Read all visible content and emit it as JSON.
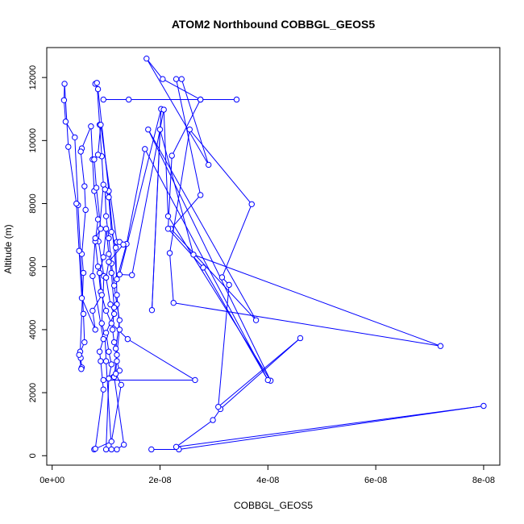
{
  "chart_data": {
    "type": "scatter",
    "title": "ATOM2 Northbound COBBGL_GEOS5",
    "xlabel": "COBBGL_GEOS5",
    "ylabel": "Altitude (m)",
    "xlim": [
      -1e-09,
      8.3e-08
    ],
    "ylim": [
      -300,
      12950
    ],
    "x_ticks": [
      {
        "value": 0,
        "label": "0e+00"
      },
      {
        "value": 2e-08,
        "label": "2e-08"
      },
      {
        "value": 4e-08,
        "label": "4e-08"
      },
      {
        "value": 6e-08,
        "label": "6e-08"
      },
      {
        "value": 8e-08,
        "label": "8e-08"
      }
    ],
    "y_ticks": [
      {
        "value": 0,
        "label": "0"
      },
      {
        "value": 2000,
        "label": "2000"
      },
      {
        "value": 4000,
        "label": "4000"
      },
      {
        "value": 6000,
        "label": "6000"
      },
      {
        "value": 8000,
        "label": "8000"
      },
      {
        "value": 10000,
        "label": "10000"
      },
      {
        "value": 12000,
        "label": "12000"
      }
    ],
    "grid": false,
    "legend": "none",
    "color": "#0000ff",
    "style": "points-connected-by-lines",
    "series": [
      {
        "values": [
          {
            "x": 1.84e-08,
            "y": 200
          },
          {
            "x": 2.35e-08,
            "y": 200
          },
          {
            "x": 8e-08,
            "y": 1580
          },
          {
            "x": 2.3e-08,
            "y": 280
          },
          {
            "x": 2.98e-08,
            "y": 1130
          },
          {
            "x": 3.12e-08,
            "y": 1480
          },
          {
            "x": 4.6e-08,
            "y": 3730
          },
          {
            "x": 3.08e-08,
            "y": 1550
          },
          {
            "x": 3.28e-08,
            "y": 5420
          },
          {
            "x": 3.15e-08,
            "y": 5660
          },
          {
            "x": 3.7e-08,
            "y": 7980
          },
          {
            "x": 2.55e-08,
            "y": 10350
          },
          {
            "x": 2.18e-08,
            "y": 6430
          },
          {
            "x": 2.25e-08,
            "y": 4850
          },
          {
            "x": 7.2e-08,
            "y": 3480
          },
          {
            "x": 2.62e-08,
            "y": 6380
          },
          {
            "x": 2e-08,
            "y": 10350
          },
          {
            "x": 1.85e-08,
            "y": 4620
          },
          {
            "x": 2.02e-08,
            "y": 11000
          },
          {
            "x": 1.25e-08,
            "y": 5750
          },
          {
            "x": 1.48e-08,
            "y": 5730
          },
          {
            "x": 2.07e-08,
            "y": 10980
          },
          {
            "x": 2.15e-08,
            "y": 7600
          },
          {
            "x": 4.05e-08,
            "y": 2380
          },
          {
            "x": 1.78e-08,
            "y": 10350
          },
          {
            "x": 3.78e-08,
            "y": 4300
          },
          {
            "x": 2.2e-08,
            "y": 7200
          },
          {
            "x": 2.75e-08,
            "y": 8270
          },
          {
            "x": 2.3e-08,
            "y": 11950
          },
          {
            "x": 2.4e-08,
            "y": 11950
          },
          {
            "x": 2.9e-08,
            "y": 9230
          },
          {
            "x": 1.75e-08,
            "y": 12600
          },
          {
            "x": 2.05e-08,
            "y": 11950
          },
          {
            "x": 2.75e-08,
            "y": 11300
          },
          {
            "x": 3.42e-08,
            "y": 11300
          },
          {
            "x": 9.5e-09,
            "y": 11300
          },
          {
            "x": 1.42e-08,
            "y": 11300
          },
          {
            "x": 2.75e-08,
            "y": 11300
          },
          {
            "x": 2.22e-08,
            "y": 9520
          },
          {
            "x": 2.15e-08,
            "y": 7200
          },
          {
            "x": 2.8e-08,
            "y": 5970
          },
          {
            "x": 4e-08,
            "y": 2400
          },
          {
            "x": 1.72e-08,
            "y": 9730
          },
          {
            "x": 1.38e-08,
            "y": 6720
          },
          {
            "x": 1.2e-08,
            "y": 5600
          },
          {
            "x": 1.05e-08,
            "y": 8400
          },
          {
            "x": 8.5e-09,
            "y": 11630
          },
          {
            "x": 8e-09,
            "y": 11800
          },
          {
            "x": 8.3e-09,
            "y": 11830
          },
          {
            "x": 8.8e-09,
            "y": 10500
          },
          {
            "x": 9.2e-09,
            "y": 9500
          },
          {
            "x": 9.5e-09,
            "y": 8600
          },
          {
            "x": 8.6e-09,
            "y": 6800
          },
          {
            "x": 9.6e-09,
            "y": 5700
          },
          {
            "x": 9.2e-09,
            "y": 4200
          },
          {
            "x": 9.8e-09,
            "y": 3800
          },
          {
            "x": 1e-08,
            "y": 3000
          },
          {
            "x": 1.1e-08,
            "y": 200
          },
          {
            "x": 1.2e-08,
            "y": 200
          },
          {
            "x": 1.33e-08,
            "y": 350
          },
          {
            "x": 1.15e-08,
            "y": 2500
          },
          {
            "x": 1.25e-08,
            "y": 4000
          },
          {
            "x": 1.2e-08,
            "y": 5100
          },
          {
            "x": 1.18e-08,
            "y": 6600
          },
          {
            "x": 1.1e-08,
            "y": 7100
          },
          {
            "x": 1.05e-08,
            "y": 8200
          },
          {
            "x": 9.8e-09,
            "y": 8450
          },
          {
            "x": 1e-08,
            "y": 7600
          },
          {
            "x": 1.05e-08,
            "y": 6900
          },
          {
            "x": 1.1e-08,
            "y": 6100
          },
          {
            "x": 1.15e-08,
            "y": 5400
          },
          {
            "x": 1.2e-08,
            "y": 4800
          },
          {
            "x": 1.25e-08,
            "y": 4300
          },
          {
            "x": 1.18e-08,
            "y": 3400
          },
          {
            "x": 1.2e-08,
            "y": 3000
          },
          {
            "x": 1.25e-08,
            "y": 2700
          },
          {
            "x": 9.5e-09,
            "y": 2400
          },
          {
            "x": 2.65e-08,
            "y": 2400
          },
          {
            "x": 1.4e-08,
            "y": 3700
          },
          {
            "x": 1.1e-08,
            "y": 4200
          },
          {
            "x": 1e-08,
            "y": 4600
          },
          {
            "x": 9e-09,
            "y": 5200
          },
          {
            "x": 8.5e-09,
            "y": 6000
          },
          {
            "x": 8e-09,
            "y": 6800
          },
          {
            "x": 8.5e-09,
            "y": 7500
          },
          {
            "x": 7.8e-09,
            "y": 8400
          },
          {
            "x": 7.5e-09,
            "y": 9400
          },
          {
            "x": 7.2e-09,
            "y": 10450
          },
          {
            "x": 5.5e-09,
            "y": 9750
          },
          {
            "x": 5.3e-09,
            "y": 9650
          },
          {
            "x": 6e-09,
            "y": 8550
          },
          {
            "x": 6.2e-09,
            "y": 7800
          },
          {
            "x": 5.5e-09,
            "y": 6400
          },
          {
            "x": 5.8e-09,
            "y": 5800
          },
          {
            "x": 5.2e-09,
            "y": 3300
          },
          {
            "x": 5.3e-09,
            "y": 3100
          },
          {
            "x": 5.5e-09,
            "y": 2800
          },
          {
            "x": 5.4e-09,
            "y": 2750
          },
          {
            "x": 5e-09,
            "y": 3200
          },
          {
            "x": 6e-09,
            "y": 3600
          },
          {
            "x": 5.8e-09,
            "y": 4500
          },
          {
            "x": 4.8e-09,
            "y": 7950
          },
          {
            "x": 4.2e-09,
            "y": 10100
          },
          {
            "x": 2.5e-09,
            "y": 10600
          },
          {
            "x": 2.2e-09,
            "y": 11280
          },
          {
            "x": 2.3e-09,
            "y": 11800
          },
          {
            "x": 3e-09,
            "y": 9800
          },
          {
            "x": 4.5e-09,
            "y": 8000
          },
          {
            "x": 5e-09,
            "y": 6500
          },
          {
            "x": 5.5e-09,
            "y": 5000
          },
          {
            "x": 8e-09,
            "y": 4000
          },
          {
            "x": 7.5e-09,
            "y": 4600
          },
          {
            "x": 9.2e-09,
            "y": 5100
          },
          {
            "x": 8.8e-09,
            "y": 5800
          },
          {
            "x": 9.5e-09,
            "y": 6300
          },
          {
            "x": 1e-08,
            "y": 7200
          },
          {
            "x": 1.05e-08,
            "y": 6400
          },
          {
            "x": 1.1e-08,
            "y": 5800
          },
          {
            "x": 1.15e-08,
            "y": 4700
          },
          {
            "x": 1.12e-08,
            "y": 4000
          },
          {
            "x": 1.15e-08,
            "y": 3600
          },
          {
            "x": 1.2e-08,
            "y": 3200
          },
          {
            "x": 1.18e-08,
            "y": 2600
          },
          {
            "x": 1.28e-08,
            "y": 2250
          },
          {
            "x": 1.1e-08,
            "y": 450
          },
          {
            "x": 7.8e-09,
            "y": 200
          },
          {
            "x": 8e-09,
            "y": 220
          },
          {
            "x": 9.5e-09,
            "y": 2100
          },
          {
            "x": 9e-09,
            "y": 3000
          },
          {
            "x": 8.8e-09,
            "y": 3300
          },
          {
            "x": 9.5e-09,
            "y": 3700
          },
          {
            "x": 7.5e-09,
            "y": 5700
          },
          {
            "x": 8e-09,
            "y": 6900
          },
          {
            "x": 9e-09,
            "y": 7200
          },
          {
            "x": 8.2e-09,
            "y": 8500
          },
          {
            "x": 7.8e-09,
            "y": 9400
          },
          {
            "x": 8.5e-09,
            "y": 9550
          },
          {
            "x": 9e-09,
            "y": 10500
          },
          {
            "x": 1.2e-08,
            "y": 6780
          },
          {
            "x": 1.25e-08,
            "y": 6780
          },
          {
            "x": 1.32e-08,
            "y": 6700
          },
          {
            "x": 1.05e-08,
            "y": 6150
          },
          {
            "x": 1e-08,
            "y": 5650
          },
          {
            "x": 1.08e-08,
            "y": 4800
          },
          {
            "x": 1.15e-08,
            "y": 4500
          },
          {
            "x": 1e-08,
            "y": 3900
          },
          {
            "x": 1.05e-08,
            "y": 3300
          },
          {
            "x": 1.1e-08,
            "y": 2900
          },
          {
            "x": 1.05e-08,
            "y": 2450
          },
          {
            "x": 1e-08,
            "y": 200
          }
        ]
      }
    ]
  }
}
